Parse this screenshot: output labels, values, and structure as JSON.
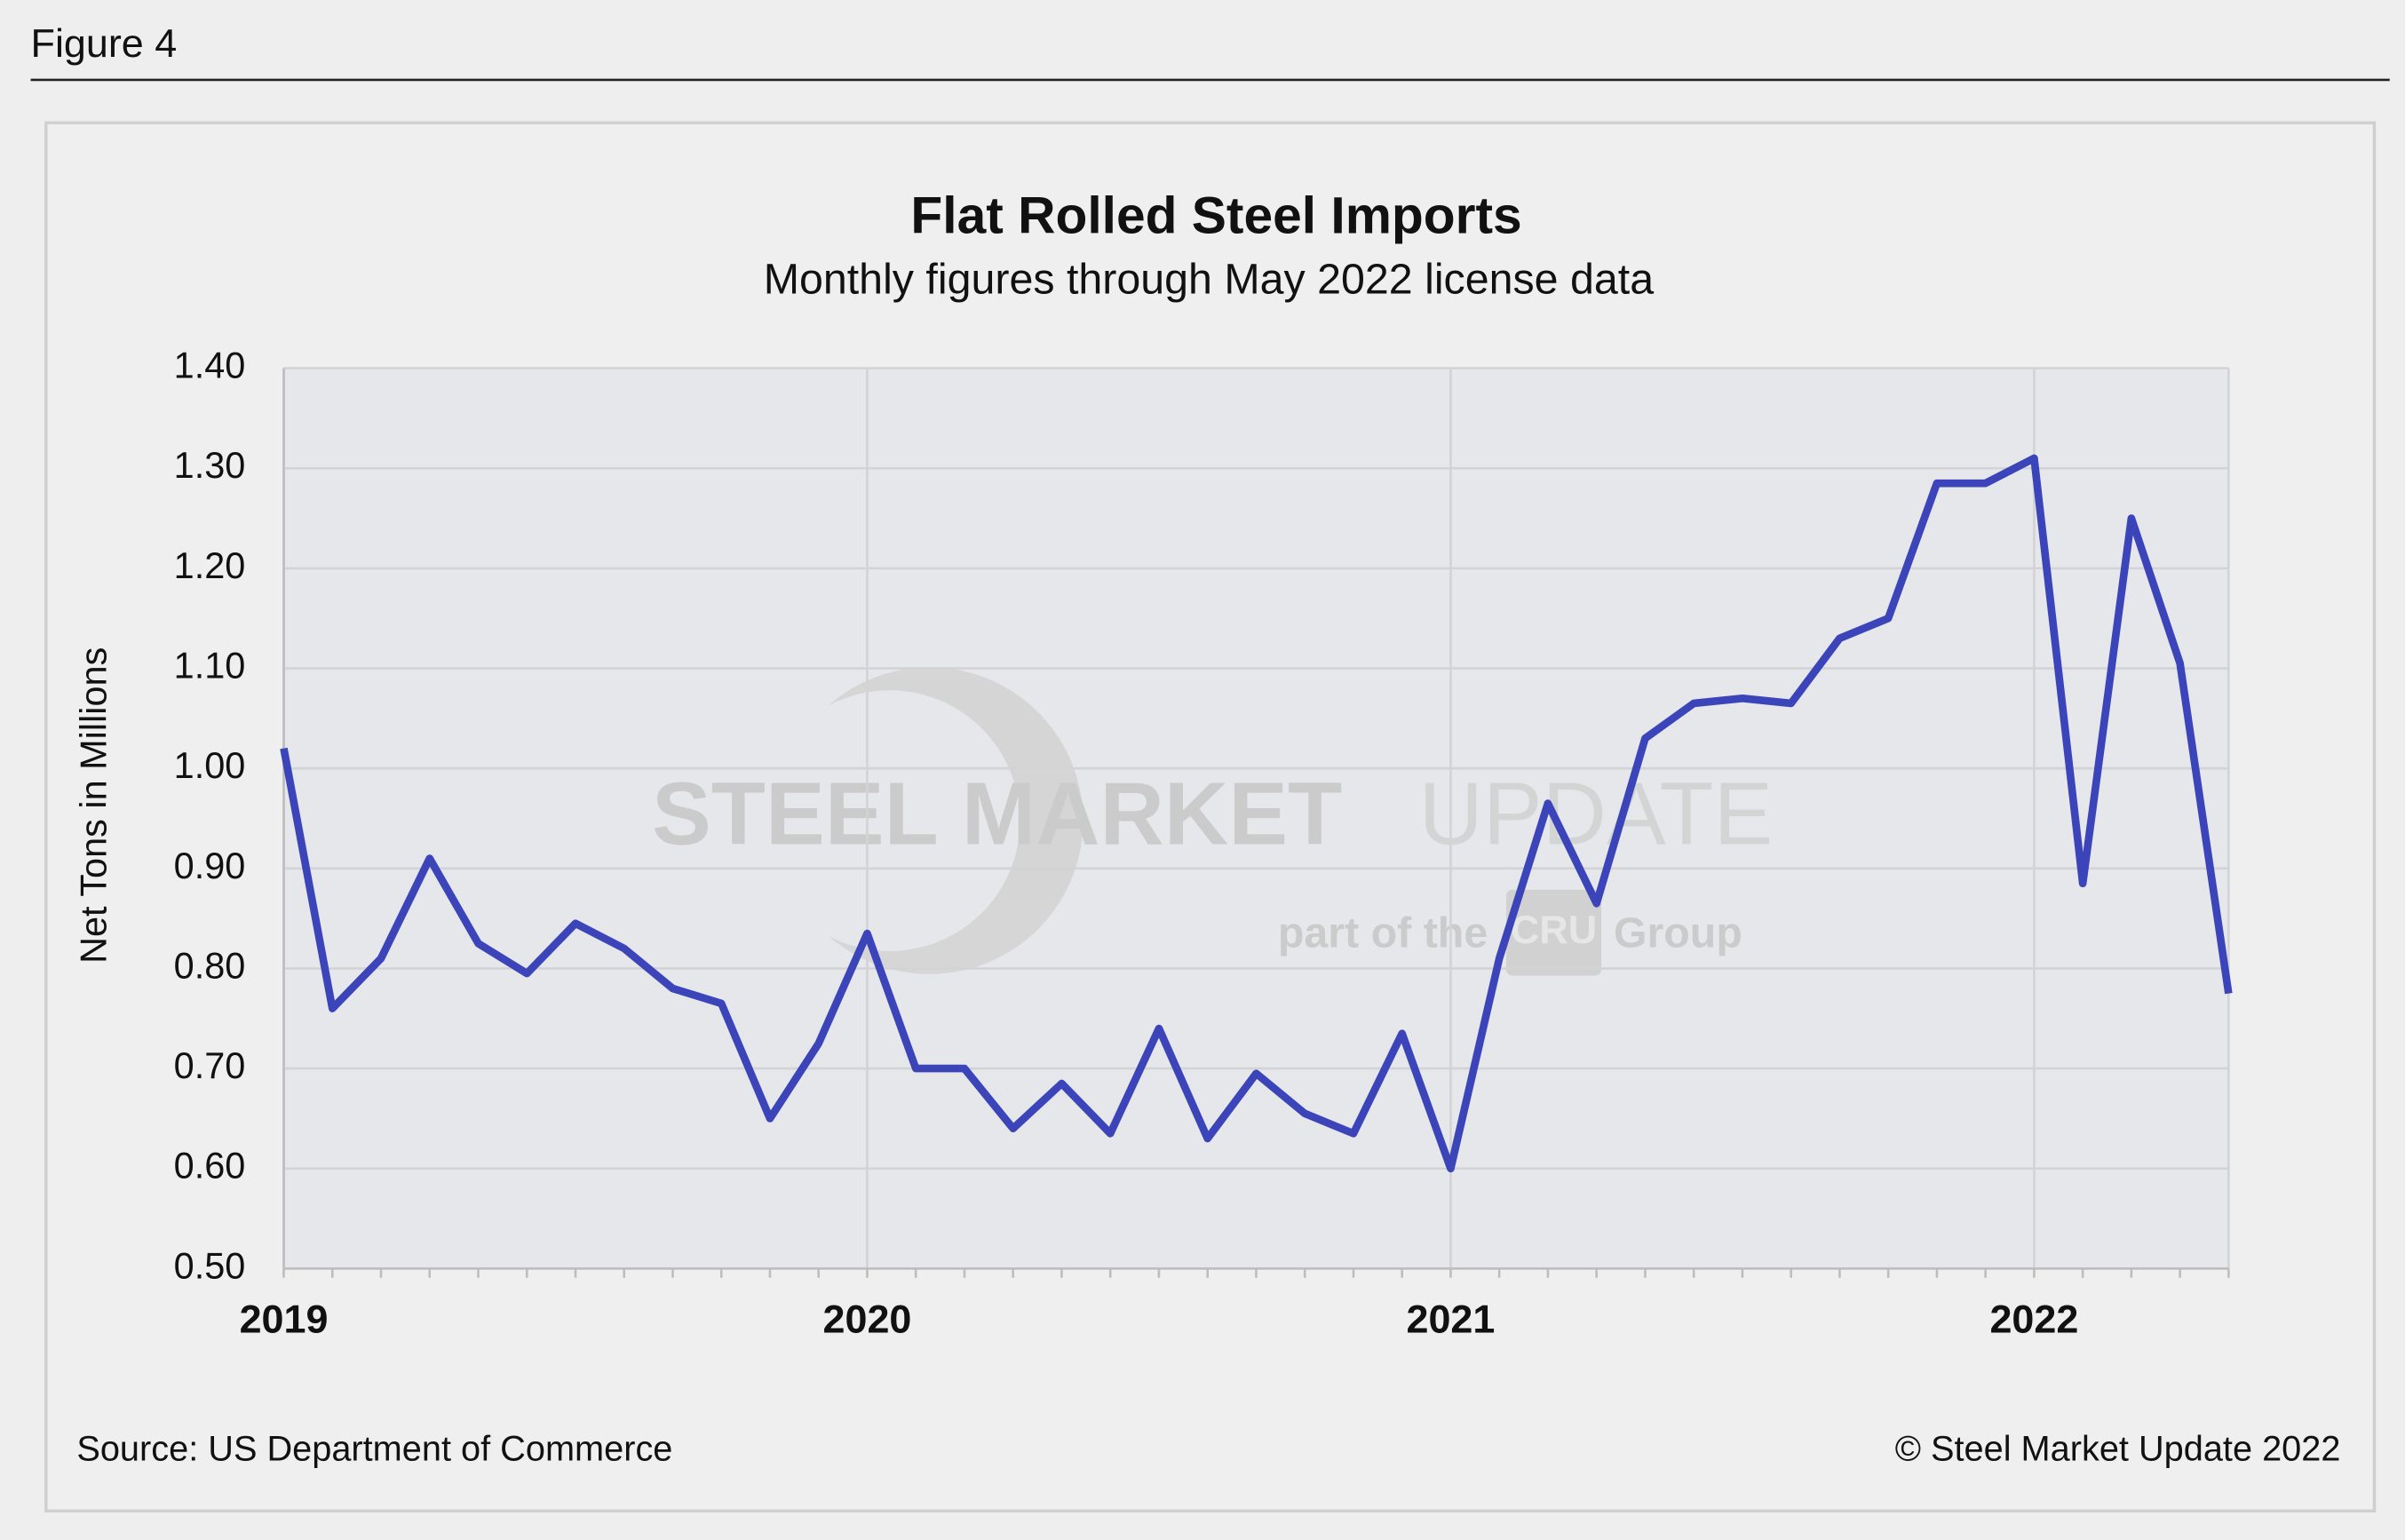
{
  "chart_data": {
    "type": "line",
    "figure_label": "Figure 4",
    "title": "Flat Rolled Steel Imports",
    "subtitle": "Monthly figures through May 2022 license data",
    "ylabel": "Net Tons in Millions",
    "source": "Source: US Department of Commerce",
    "copyright": "© Steel Market Update 2022",
    "watermark": {
      "brand_bold": "STEEL MARKET",
      "brand_light": "UPDATE",
      "tagline_start": "part of the",
      "logo": "CRU",
      "tagline_end": "Group"
    },
    "categories": [
      "2019",
      null,
      null,
      null,
      null,
      null,
      null,
      null,
      null,
      null,
      null,
      null,
      "2020",
      null,
      null,
      null,
      null,
      null,
      null,
      null,
      null,
      null,
      null,
      null,
      "2021",
      null,
      null,
      null,
      null,
      null,
      null,
      null,
      null,
      null,
      null,
      null,
      "2022",
      null,
      null,
      null,
      null
    ],
    "series": [
      {
        "name": "Flat Rolled Steel Imports",
        "color": "#3c44b9",
        "values": [
          1.02,
          0.76,
          0.81,
          0.91,
          0.825,
          0.795,
          0.845,
          0.82,
          0.78,
          0.765,
          0.65,
          0.725,
          0.835,
          0.7,
          0.7,
          0.64,
          0.685,
          0.635,
          0.74,
          0.63,
          0.695,
          0.655,
          0.635,
          0.735,
          0.6,
          0.81,
          0.965,
          0.865,
          1.03,
          1.065,
          1.07,
          1.065,
          1.13,
          1.15,
          1.285,
          1.285,
          1.31,
          0.885,
          1.25,
          1.105,
          0.775
        ]
      }
    ],
    "ylim": [
      0.5,
      1.4
    ],
    "yticks": [
      {
        "value": 0.5,
        "label": "0.50"
      },
      {
        "value": 0.6,
        "label": "0.60"
      },
      {
        "value": 0.7,
        "label": "0.70"
      },
      {
        "value": 0.8,
        "label": "0.80"
      },
      {
        "value": 0.9,
        "label": "0.90"
      },
      {
        "value": 1.0,
        "label": "1.00"
      },
      {
        "value": 1.1,
        "label": "1.10"
      },
      {
        "value": 1.2,
        "label": "1.20"
      },
      {
        "value": 1.3,
        "label": "1.30"
      },
      {
        "value": 1.4,
        "label": "1.40"
      }
    ],
    "grid": true
  }
}
